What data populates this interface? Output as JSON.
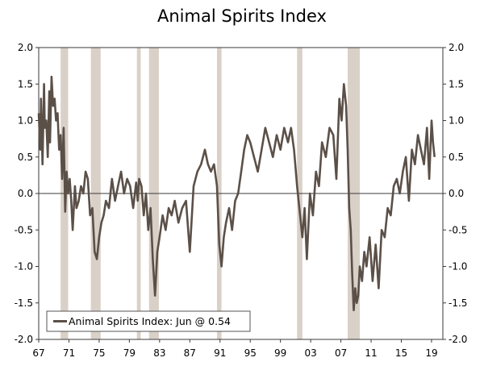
{
  "chart_data": {
    "type": "line",
    "title": "Animal Spirits Index",
    "xlim": [
      1967,
      2020.5
    ],
    "ylim": [
      -2.0,
      2.0
    ],
    "x_tick_values": [
      1967,
      1971,
      1975,
      1979,
      1983,
      1987,
      1991,
      1995,
      1999,
      2003,
      2007,
      2011,
      2015,
      2019
    ],
    "x_tick_labels": [
      "67",
      "71",
      "75",
      "79",
      "83",
      "87",
      "91",
      "95",
      "99",
      "03",
      "07",
      "11",
      "15",
      "19"
    ],
    "y_ticks": [
      2.0,
      1.5,
      1.0,
      0.5,
      0.0,
      -0.5,
      -1.0,
      -1.5,
      -2.0
    ],
    "y_tick_labels": [
      "2.0",
      "1.5",
      "1.0",
      "0.5",
      "0.0",
      "-0.5",
      "-1.0",
      "-1.5",
      "-2.0"
    ],
    "recessions": [
      [
        1969.9,
        1970.9
      ],
      [
        1973.9,
        1975.2
      ],
      [
        1980.0,
        1980.5
      ],
      [
        1981.6,
        1982.9
      ],
      [
        1990.6,
        1991.2
      ],
      [
        2001.2,
        2001.9
      ],
      [
        2007.9,
        2009.5
      ]
    ],
    "legend": {
      "label": "Animal Spirits Index: Jun @ 0.54",
      "placement": "bottom-left"
    },
    "line_color": "#5b5048",
    "recession_color": "#d9d0c7",
    "series": [
      {
        "x": [
          1967.0,
          1967.2,
          1967.3,
          1967.5,
          1967.7,
          1967.8,
          1968.0,
          1968.2,
          1968.4,
          1968.5,
          1968.7,
          1968.9,
          1969.1,
          1969.3,
          1969.5,
          1969.7,
          1969.9,
          1970.1,
          1970.3,
          1970.5,
          1970.7,
          1970.9,
          1971.1,
          1971.3,
          1971.5,
          1971.8,
          1972.0,
          1972.3,
          1972.6,
          1972.9,
          1973.2,
          1973.5,
          1973.8,
          1974.1,
          1974.4,
          1974.7,
          1975.0,
          1975.3,
          1975.6,
          1975.9,
          1976.3,
          1976.7,
          1977.1,
          1977.5,
          1977.9,
          1978.3,
          1978.7,
          1979.1,
          1979.5,
          1979.9,
          1980.1,
          1980.3,
          1980.6,
          1980.9,
          1981.2,
          1981.5,
          1981.8,
          1982.1,
          1982.4,
          1982.7,
          1983.0,
          1983.4,
          1983.8,
          1984.2,
          1984.6,
          1985.0,
          1985.5,
          1986.0,
          1986.5,
          1987.0,
          1987.5,
          1988.0,
          1988.5,
          1989.0,
          1989.4,
          1989.8,
          1990.2,
          1990.6,
          1990.9,
          1991.2,
          1991.5,
          1991.8,
          1992.2,
          1992.6,
          1993.0,
          1993.4,
          1993.8,
          1994.2,
          1994.6,
          1995.0,
          1995.5,
          1996.0,
          1996.5,
          1997.0,
          1997.5,
          1998.0,
          1998.5,
          1999.0,
          1999.5,
          2000.0,
          2000.4,
          2000.8,
          2001.2,
          2001.6,
          2001.9,
          2002.2,
          2002.5,
          2002.9,
          2003.3,
          2003.7,
          2004.1,
          2004.5,
          2005.0,
          2005.5,
          2006.0,
          2006.4,
          2006.8,
          2007.1,
          2007.4,
          2007.7,
          2007.9,
          2008.1,
          2008.3,
          2008.5,
          2008.7,
          2008.9,
          2009.1,
          2009.3,
          2009.5,
          2009.8,
          2010.1,
          2010.4,
          2010.8,
          2011.2,
          2011.6,
          2012.0,
          2012.4,
          2012.8,
          2013.2,
          2013.6,
          2014.0,
          2014.4,
          2014.8,
          2015.2,
          2015.6,
          2016.0,
          2016.4,
          2016.8,
          2017.2,
          2017.6,
          2018.0,
          2018.4,
          2018.7,
          2019.0,
          2019.2,
          2019.4
        ],
        "y": [
          1.1,
          0.6,
          1.3,
          0.4,
          1.5,
          0.9,
          1.0,
          0.5,
          1.4,
          0.7,
          1.6,
          1.2,
          1.3,
          1.0,
          1.1,
          0.6,
          0.8,
          0.2,
          0.9,
          -0.25,
          0.3,
          0.0,
          0.2,
          -0.1,
          -0.5,
          0.1,
          -0.2,
          -0.1,
          0.1,
          0.0,
          0.3,
          0.2,
          -0.3,
          -0.2,
          -0.8,
          -0.9,
          -0.6,
          -0.4,
          -0.3,
          -0.1,
          -0.2,
          0.2,
          -0.1,
          0.1,
          0.3,
          0.0,
          0.2,
          0.1,
          -0.2,
          0.15,
          -0.1,
          0.2,
          0.1,
          -0.3,
          0.0,
          -0.5,
          -0.2,
          -0.9,
          -1.4,
          -0.8,
          -0.6,
          -0.3,
          -0.5,
          -0.2,
          -0.3,
          -0.1,
          -0.4,
          -0.2,
          -0.1,
          -0.8,
          0.1,
          0.3,
          0.4,
          0.6,
          0.4,
          0.3,
          0.4,
          0.1,
          -0.7,
          -1.0,
          -0.6,
          -0.4,
          -0.2,
          -0.5,
          -0.1,
          0.0,
          0.3,
          0.6,
          0.8,
          0.7,
          0.5,
          0.3,
          0.6,
          0.9,
          0.7,
          0.5,
          0.8,
          0.6,
          0.9,
          0.7,
          0.9,
          0.6,
          0.1,
          -0.3,
          -0.6,
          -0.2,
          -0.9,
          0.0,
          -0.3,
          0.3,
          0.1,
          0.7,
          0.5,
          0.9,
          0.8,
          0.2,
          1.3,
          1.0,
          1.5,
          1.2,
          0.6,
          -0.2,
          -0.5,
          -1.1,
          -1.6,
          -1.3,
          -1.5,
          -1.4,
          -1.0,
          -1.2,
          -0.8,
          -1.0,
          -0.6,
          -1.2,
          -0.7,
          -1.3,
          -0.5,
          -0.6,
          -0.2,
          -0.3,
          0.1,
          0.2,
          0.0,
          0.3,
          0.5,
          -0.1,
          0.6,
          0.4,
          0.8,
          0.6,
          0.4,
          0.9,
          0.2,
          1.0,
          0.7,
          0.5
        ]
      }
    ]
  }
}
